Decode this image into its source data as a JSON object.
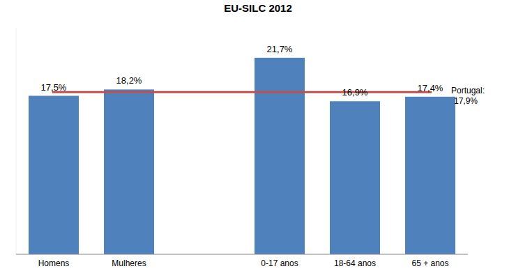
{
  "chart_data": {
    "type": "bar",
    "title": "EU-SILC 2012",
    "categories": [
      "Homens",
      "Mulheres",
      null,
      "0-17 anos",
      "18-64 anos",
      "65 + anos"
    ],
    "values": [
      17.5,
      18.2,
      null,
      21.7,
      16.9,
      17.4
    ],
    "value_labels": [
      "17,5%",
      "18,2%",
      null,
      "21,7%",
      "16,9%",
      "17,4%"
    ],
    "color": "#4f81bd",
    "ylim": [
      0,
      25
    ],
    "data_labels": true,
    "tick_labels": "x",
    "grid": false,
    "annotations": [
      {
        "text": "Portugal:",
        "value": 17.9,
        "value_label": "17,9%",
        "color": "#c0504d"
      }
    ]
  }
}
